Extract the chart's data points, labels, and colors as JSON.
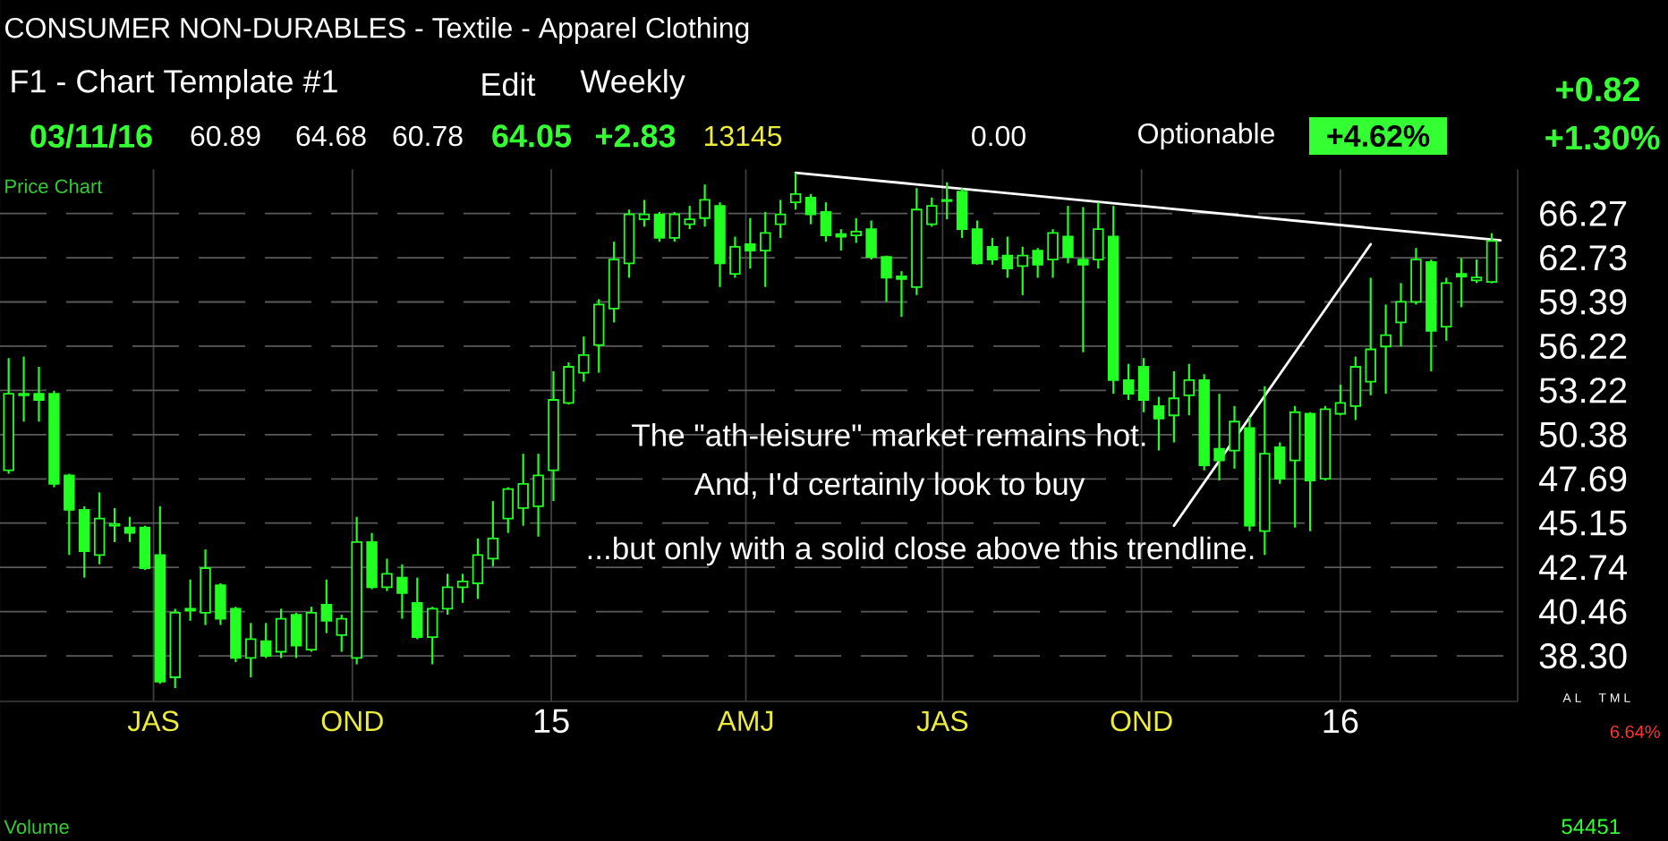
{
  "chart_data": {
    "type": "candlestick",
    "title": "CONSUMER NON-DURABLES - Textile - Apparel Clothing",
    "annotations": [
      "Price Chart",
      "F1 - Chart Template #1",
      "Edit",
      "Weekly",
      "03/11/16",
      "60.89",
      "64.68",
      "60.78",
      "64.05",
      "+2.83",
      "13145",
      "0.00",
      "Optionable",
      "+4.62%",
      "+0.82",
      "+1.30%",
      "The \"ath-leisure\" market remains hot.",
      "And, I'd certainly look to buy",
      "...but only with a solid close above this trendline.",
      "A L",
      "T M L",
      "6.64%",
      "Volume",
      "54451"
    ],
    "xlim": [
      "2014-04-21",
      "2016-03-23"
    ],
    "xticks": [
      {
        "value": "2014-07-01",
        "label": "JAS"
      },
      {
        "value": "2014-10-01",
        "label": "OND"
      },
      {
        "value": "2015-01-01",
        "label": "15"
      },
      {
        "value": "2015-04-01",
        "label": "AMJ"
      },
      {
        "value": "2015-07-01",
        "label": "JAS"
      },
      {
        "value": "2015-10-01",
        "label": "OND"
      },
      {
        "value": "2016-01-01",
        "label": "16"
      }
    ],
    "ylim": [
      36.2,
      70
    ],
    "yticks": [
      {
        "value": 38.3,
        "label": "38.30"
      },
      40.46,
      42.74,
      45.15,
      47.69,
      50.38,
      53.22,
      56.22,
      59.39,
      62.73,
      66.27
    ],
    "log": "y",
    "grid": true,
    "series": [
      {
        "color": "#22ff22",
        "x": [
          "2014-04-25",
          "2014-05-02",
          "2014-05-09",
          "2014-05-16",
          "2014-05-23",
          "2014-05-30",
          "2014-06-06",
          "2014-06-13",
          "2014-06-20",
          "2014-06-27",
          "2014-07-04",
          "2014-07-11",
          "2014-07-18",
          "2014-07-25",
          "2014-08-01",
          "2014-08-08",
          "2014-08-15",
          "2014-08-22",
          "2014-08-29",
          "2014-09-05",
          "2014-09-12",
          "2014-09-19",
          "2014-09-26",
          "2014-10-03",
          "2014-10-10",
          "2014-10-17",
          "2014-10-24",
          "2014-10-31",
          "2014-11-07",
          "2014-11-14",
          "2014-11-21",
          "2014-11-28",
          "2014-12-05",
          "2014-12-12",
          "2014-12-19",
          "2014-12-26",
          "2015-01-02",
          "2015-01-09",
          "2015-01-16",
          "2015-01-23",
          "2015-01-30",
          "2015-02-06",
          "2015-02-13",
          "2015-02-20",
          "2015-02-27",
          "2015-03-06",
          "2015-03-13",
          "2015-03-20",
          "2015-03-27",
          "2015-04-03",
          "2015-04-10",
          "2015-04-17",
          "2015-04-24",
          "2015-05-01",
          "2015-05-08",
          "2015-05-15",
          "2015-05-22",
          "2015-05-29",
          "2015-06-05",
          "2015-06-12",
          "2015-06-19",
          "2015-06-26",
          "2015-07-03",
          "2015-07-10",
          "2015-07-17",
          "2015-07-24",
          "2015-07-31",
          "2015-08-07",
          "2015-08-14",
          "2015-08-21",
          "2015-08-28",
          "2015-09-04",
          "2015-09-11",
          "2015-09-18",
          "2015-09-25",
          "2015-10-02",
          "2015-10-09",
          "2015-10-16",
          "2015-10-23",
          "2015-10-30",
          "2015-11-06",
          "2015-11-13",
          "2015-11-20",
          "2015-11-27",
          "2015-12-04",
          "2015-12-11",
          "2015-12-18",
          "2015-12-25",
          "2016-01-01",
          "2016-01-08",
          "2016-01-15",
          "2016-01-22",
          "2016-01-29",
          "2016-02-05",
          "2016-02-12",
          "2016-02-19",
          "2016-02-26",
          "2016-03-04",
          "2016-03-11"
        ],
        "ohlc": [
          [
            48.2,
            55.4,
            48.0,
            53.0
          ],
          [
            53.0,
            55.5,
            51.2,
            52.9
          ],
          [
            53.0,
            54.8,
            51.2,
            52.6
          ],
          [
            53.0,
            53.2,
            47.2,
            47.4
          ],
          [
            47.9,
            48.0,
            43.4,
            45.9
          ],
          [
            45.9,
            46.1,
            42.2,
            43.6
          ],
          [
            43.4,
            46.9,
            42.9,
            45.4
          ],
          [
            45.0,
            46.0,
            44.1,
            45.1
          ],
          [
            44.9,
            45.5,
            44.1,
            44.6
          ],
          [
            44.9,
            45.0,
            42.6,
            42.7
          ],
          [
            43.4,
            46.1,
            37.0,
            37.1
          ],
          [
            37.3,
            40.6,
            36.8,
            40.4
          ],
          [
            40.6,
            42.1,
            40.0,
            40.5
          ],
          [
            40.4,
            43.7,
            39.8,
            42.7
          ],
          [
            41.8,
            41.9,
            39.8,
            40.1
          ],
          [
            40.6,
            40.7,
            38.0,
            38.2
          ],
          [
            38.2,
            39.9,
            37.3,
            39.1
          ],
          [
            39.0,
            39.9,
            38.2,
            38.3
          ],
          [
            38.5,
            40.6,
            38.2,
            40.1
          ],
          [
            40.3,
            40.4,
            38.2,
            38.8
          ],
          [
            38.6,
            40.7,
            38.5,
            40.4
          ],
          [
            40.8,
            42.1,
            39.4,
            40.0
          ],
          [
            39.3,
            40.3,
            38.5,
            40.1
          ],
          [
            38.2,
            45.5,
            37.9,
            44.1
          ],
          [
            44.1,
            44.6,
            41.6,
            41.7
          ],
          [
            41.7,
            43.2,
            41.5,
            42.4
          ],
          [
            42.2,
            42.9,
            40.1,
            41.4
          ],
          [
            40.9,
            42.2,
            39.1,
            39.2
          ],
          [
            39.2,
            40.7,
            37.9,
            40.6
          ],
          [
            40.6,
            42.4,
            40.3,
            41.7
          ],
          [
            41.7,
            42.4,
            40.9,
            42.0
          ],
          [
            41.9,
            44.3,
            41.1,
            43.4
          ],
          [
            43.2,
            46.4,
            42.8,
            44.3
          ],
          [
            45.4,
            47.2,
            44.6,
            47.1
          ],
          [
            46.0,
            49.2,
            45.0,
            47.4
          ],
          [
            46.1,
            49.2,
            44.4,
            47.9
          ],
          [
            48.2,
            54.5,
            46.4,
            52.6
          ],
          [
            52.4,
            55.1,
            52.3,
            54.8
          ],
          [
            54.4,
            56.9,
            53.8,
            55.6
          ],
          [
            56.3,
            59.6,
            54.4,
            59.2
          ],
          [
            58.9,
            64.0,
            57.9,
            62.6
          ],
          [
            62.3,
            66.6,
            61.2,
            66.2
          ],
          [
            65.8,
            67.4,
            65.2,
            66.2
          ],
          [
            66.2,
            66.4,
            64.0,
            64.3
          ],
          [
            64.3,
            66.4,
            64.0,
            66.2
          ],
          [
            65.4,
            66.9,
            65.0,
            65.8
          ],
          [
            65.9,
            68.7,
            65.2,
            67.4
          ],
          [
            66.9,
            67.2,
            60.5,
            62.3
          ],
          [
            61.5,
            64.4,
            61.2,
            63.6
          ],
          [
            63.8,
            65.9,
            61.9,
            63.3
          ],
          [
            63.3,
            66.4,
            60.5,
            64.7
          ],
          [
            65.4,
            67.4,
            64.3,
            66.2
          ],
          [
            67.2,
            69.7,
            66.6,
            67.9
          ],
          [
            67.6,
            67.9,
            65.4,
            66.2
          ],
          [
            66.4,
            67.2,
            64.0,
            64.5
          ],
          [
            64.6,
            65.0,
            63.3,
            64.4
          ],
          [
            64.5,
            65.9,
            63.9,
            64.8
          ],
          [
            65.0,
            65.7,
            62.6,
            62.8
          ],
          [
            62.8,
            62.9,
            59.4,
            61.2
          ],
          [
            61.3,
            61.7,
            58.3,
            61.1
          ],
          [
            60.5,
            68.4,
            59.9,
            66.6
          ],
          [
            65.4,
            67.6,
            65.2,
            66.9
          ],
          [
            67.4,
            68.9,
            65.8,
            67.3
          ],
          [
            68.1,
            68.4,
            64.3,
            65.0
          ],
          [
            65.0,
            65.7,
            62.2,
            62.3
          ],
          [
            63.6,
            64.3,
            62.2,
            62.6
          ],
          [
            62.9,
            64.4,
            61.2,
            61.9
          ],
          [
            62.1,
            63.6,
            59.9,
            62.9
          ],
          [
            63.3,
            63.5,
            61.2,
            62.2
          ],
          [
            62.6,
            65.0,
            61.2,
            64.7
          ],
          [
            64.4,
            66.9,
            62.3,
            62.8
          ],
          [
            62.6,
            66.8,
            55.8,
            62.2
          ],
          [
            62.6,
            67.2,
            61.9,
            65.0
          ],
          [
            64.4,
            66.9,
            53.0,
            53.9
          ],
          [
            53.9,
            55.0,
            52.6,
            53.0
          ],
          [
            54.8,
            55.4,
            51.8,
            52.6
          ],
          [
            52.2,
            52.8,
            49.4,
            51.4
          ],
          [
            51.6,
            54.5,
            49.9,
            52.7
          ],
          [
            52.9,
            55.0,
            51.6,
            53.9
          ],
          [
            53.9,
            54.3,
            48.2,
            48.5
          ],
          [
            49.5,
            53.0,
            47.6,
            48.8
          ],
          [
            49.4,
            52.2,
            48.3,
            51.2
          ],
          [
            50.8,
            51.5,
            44.7,
            45.0
          ],
          [
            44.7,
            53.5,
            43.4,
            49.2
          ],
          [
            49.6,
            49.9,
            47.4,
            47.7
          ],
          [
            48.8,
            52.2,
            44.9,
            51.8
          ],
          [
            51.7,
            51.8,
            44.7,
            47.6
          ],
          [
            47.7,
            52.2,
            47.6,
            52.0
          ],
          [
            51.7,
            53.6,
            51.6,
            52.4
          ],
          [
            52.2,
            55.5,
            51.3,
            54.8
          ],
          [
            53.8,
            61.2,
            52.9,
            56.0
          ],
          [
            56.2,
            59.2,
            53.0,
            57.0
          ],
          [
            57.9,
            60.8,
            56.2,
            59.4
          ],
          [
            59.4,
            63.5,
            59.2,
            62.6
          ],
          [
            62.4,
            62.6,
            54.5,
            57.3
          ],
          [
            57.6,
            61.2,
            56.6,
            60.8
          ],
          [
            61.5,
            62.7,
            59.0,
            61.3
          ],
          [
            61.0,
            62.6,
            60.8,
            61.22
          ],
          [
            60.89,
            64.68,
            60.78,
            64.05
          ]
        ]
      },
      {
        "type": "line",
        "color": "#ffffff",
        "x": [
          "2015-04-24",
          "2016-03-15"
        ],
        "values": [
          69.7,
          64.1
        ]
      },
      {
        "type": "line",
        "color": "#ffffff",
        "x": [
          "2015-10-16",
          "2016-01-15"
        ],
        "values": [
          45.0,
          63.8
        ]
      }
    ]
  }
}
